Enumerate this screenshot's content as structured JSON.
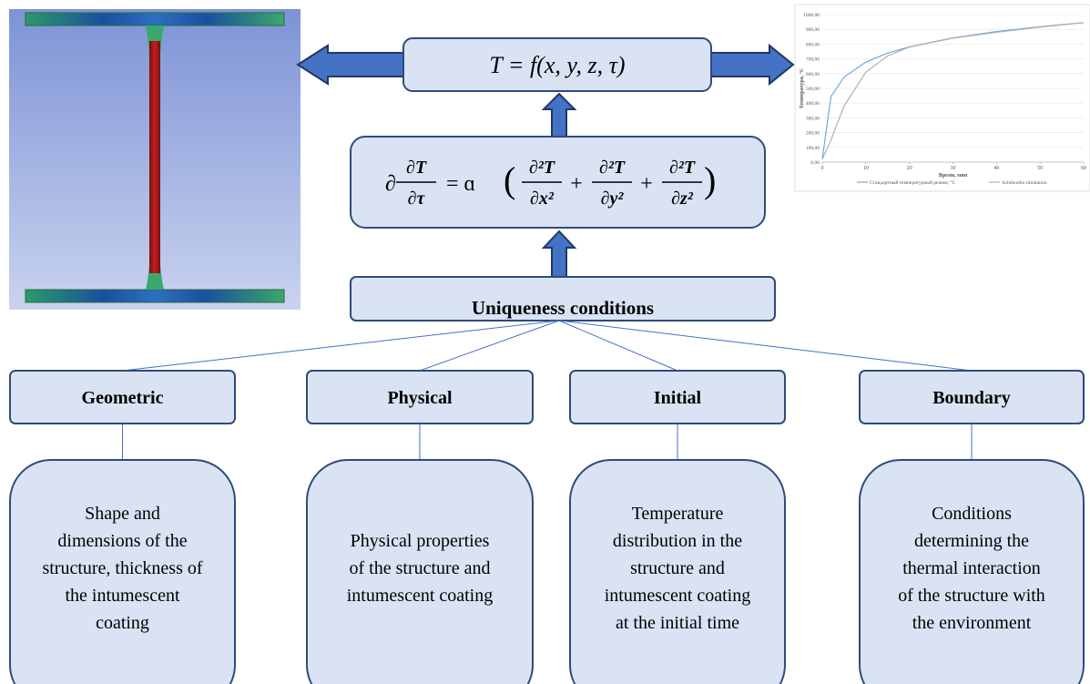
{
  "top_formula": "T = f(x, y, z, τ)",
  "equation": {
    "prefix": "∂",
    "lhs": {
      "num": "∂T",
      "den": "∂τ"
    },
    "equals": "= ɑ",
    "open": "(",
    "close": ")",
    "plus": "+",
    "terms": [
      {
        "num": "∂²T",
        "den": "∂x²"
      },
      {
        "num": "∂²T",
        "den": "∂y²"
      },
      {
        "num": "∂²T",
        "den": "∂z²"
      }
    ]
  },
  "uniqueness": "Uniqueness conditions",
  "conditions": [
    {
      "title": "Geometric",
      "lines": [
        "Shape and",
        "dimensions of the",
        "structure, thickness of",
        "the intumescent",
        "coating"
      ]
    },
    {
      "title": "Physical",
      "lines": [
        "Physical properties",
        "of the structure and",
        "intumescent coating"
      ]
    },
    {
      "title": "Initial",
      "lines": [
        "Temperature",
        "distribution in the",
        "structure and",
        "intumescent coating",
        "at the initial time"
      ]
    },
    {
      "title": "Boundary",
      "lines": [
        "Conditions",
        "determining the",
        "thermal interaction",
        "of the structure with",
        "the environment"
      ]
    }
  ],
  "chart": {
    "type": "line",
    "x_label": "Время, мин",
    "y_label": "Температура, °С",
    "x": [
      0,
      2,
      5,
      10,
      15,
      20,
      30,
      40,
      50,
      60
    ],
    "series": [
      {
        "name": "Стандартный температурный режим, °С",
        "color": "#6fa8dc",
        "values": [
          20,
          445,
          576,
          678,
          739,
          781,
          842,
          885,
          918,
          945
        ]
      },
      {
        "name": "Solidworks simulation",
        "color": "#b0b0b0",
        "values": [
          20,
          150,
          380,
          610,
          720,
          780,
          840,
          880,
          915,
          945
        ]
      }
    ],
    "xlim": [
      0,
      60
    ],
    "ylim": [
      0,
      1000
    ],
    "xticks": [
      0,
      10,
      20,
      30,
      40,
      50,
      60
    ],
    "yticks": [
      {
        "value": 0,
        "label": "0,00"
      },
      {
        "value": 100,
        "label": "100,00"
      },
      {
        "value": 200,
        "label": "200,00"
      },
      {
        "value": 300,
        "label": "300,00"
      },
      {
        "value": 400,
        "label": "400,00"
      },
      {
        "value": 500,
        "label": "500,00"
      },
      {
        "value": 600,
        "label": "600,00"
      },
      {
        "value": 700,
        "label": "700,00"
      },
      {
        "value": 800,
        "label": "800,00"
      },
      {
        "value": 900,
        "label": "900,00"
      },
      {
        "value": 1000,
        "label": "1000,00"
      }
    ]
  }
}
